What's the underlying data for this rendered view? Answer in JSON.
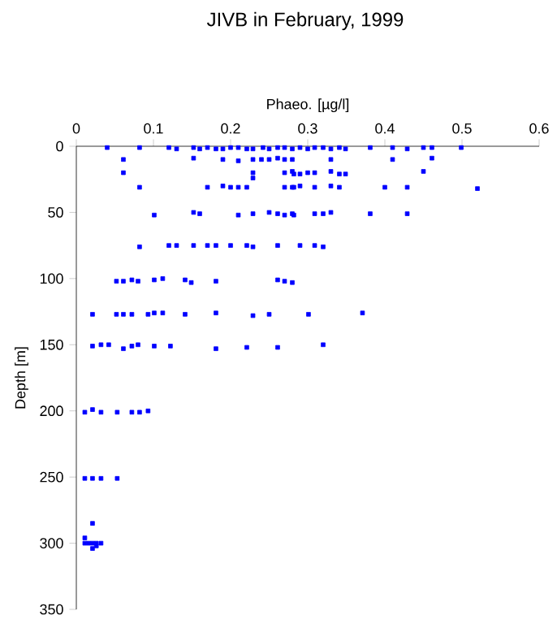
{
  "chart_data": {
    "type": "scatter",
    "title": "JIVB in February, 1999",
    "xlabel": "Phaeo. [µg/l]",
    "ylabel": "Depth [m]",
    "xlim": [
      0,
      0.6
    ],
    "xticks": [
      0,
      0.1,
      0.2,
      0.3,
      0.4,
      0.5,
      0.6
    ],
    "ylim": [
      350,
      0
    ],
    "yticks": [
      0,
      50,
      100,
      150,
      200,
      250,
      300,
      350
    ],
    "marker": "square",
    "color": "#0000ff",
    "x": [
      0.04,
      0.082,
      0.12,
      0.13,
      0.152,
      0.16,
      0.17,
      0.181,
      0.19,
      0.2,
      0.21,
      0.221,
      0.229,
      0.242,
      0.25,
      0.261,
      0.27,
      0.28,
      0.29,
      0.3,
      0.309,
      0.32,
      0.33,
      0.341,
      0.349,
      0.381,
      0.41,
      0.429,
      0.45,
      0.461,
      0.499,
      0.061,
      0.152,
      0.19,
      0.21,
      0.229,
      0.24,
      0.25,
      0.261,
      0.27,
      0.28,
      0.33,
      0.41,
      0.461,
      0.061,
      0.229,
      0.27,
      0.28,
      0.29,
      0.3,
      0.282,
      0.309,
      0.33,
      0.341,
      0.349,
      0.45,
      0.229,
      0.082,
      0.17,
      0.19,
      0.2,
      0.21,
      0.221,
      0.27,
      0.28,
      0.29,
      0.282,
      0.309,
      0.33,
      0.341,
      0.4,
      0.429,
      0.52,
      0.101,
      0.152,
      0.16,
      0.21,
      0.229,
      0.25,
      0.261,
      0.27,
      0.28,
      0.282,
      0.309,
      0.32,
      0.33,
      0.381,
      0.429,
      0.082,
      0.12,
      0.13,
      0.152,
      0.17,
      0.181,
      0.2,
      0.221,
      0.229,
      0.261,
      0.29,
      0.309,
      0.32,
      0.052,
      0.061,
      0.072,
      0.08,
      0.101,
      0.112,
      0.141,
      0.149,
      0.181,
      0.261,
      0.27,
      0.28,
      0.021,
      0.052,
      0.061,
      0.072,
      0.093,
      0.101,
      0.112,
      0.141,
      0.181,
      0.229,
      0.25,
      0.301,
      0.371,
      0.021,
      0.032,
      0.042,
      0.061,
      0.072,
      0.08,
      0.101,
      0.122,
      0.181,
      0.221,
      0.261,
      0.32,
      0.011,
      0.021,
      0.032,
      0.053,
      0.072,
      0.082,
      0.093,
      0.011,
      0.021,
      0.032,
      0.053,
      0.021,
      0.011,
      0.016,
      0.021,
      0.026,
      0.032,
      0.011,
      0.021,
      0.026
    ],
    "values": [
      1,
      1,
      1,
      2,
      1,
      2,
      1,
      2,
      2,
      1,
      1,
      2,
      2,
      1,
      2,
      1,
      1,
      2,
      1,
      2,
      1,
      1,
      2,
      1,
      2,
      1,
      1,
      2,
      1,
      1,
      1,
      10,
      9,
      10,
      11,
      10,
      10,
      10,
      9,
      10,
      10,
      10,
      10,
      9,
      20,
      20,
      20,
      19,
      21,
      20,
      21,
      20,
      19,
      21,
      21,
      19,
      24,
      31,
      31,
      30,
      31,
      31,
      31,
      31,
      31,
      30,
      31,
      31,
      30,
      31,
      31,
      31,
      32,
      52,
      50,
      51,
      52,
      51,
      50,
      51,
      52,
      51,
      52,
      51,
      51,
      50,
      51,
      51,
      76,
      75,
      75,
      75,
      75,
      75,
      75,
      75,
      76,
      75,
      75,
      75,
      76,
      102,
      102,
      101,
      102,
      101,
      100,
      101,
      103,
      102,
      101,
      102,
      103,
      127,
      127,
      127,
      127,
      127,
      126,
      126,
      127,
      126,
      128,
      127,
      127,
      126,
      151,
      150,
      150,
      153,
      151,
      150,
      151,
      151,
      153,
      152,
      152,
      150,
      201,
      199,
      201,
      201,
      201,
      201,
      200,
      251,
      251,
      251,
      251,
      285,
      300,
      300,
      300,
      300,
      300,
      296,
      304,
      302
    ]
  }
}
